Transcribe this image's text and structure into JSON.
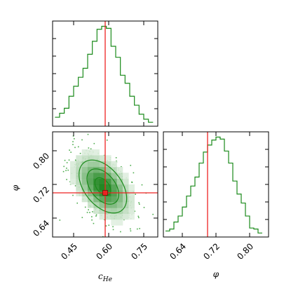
{
  "chart_data": {
    "type": "corner",
    "line_color": "#1a8a1a",
    "truth_color": "#ee2222",
    "parameters": [
      {
        "name": "c_He",
        "label_base": "c",
        "label_sub": "He",
        "range": [
          0.36,
          0.81
        ],
        "ticks": [
          0.45,
          0.6,
          0.75
        ],
        "truth": 0.585
      },
      {
        "name": "phi",
        "label_base": "φ",
        "label_sub": "",
        "range": [
          0.595,
          0.845
        ],
        "ticks": [
          0.64,
          0.72,
          0.8
        ],
        "truth": 0.7
      }
    ],
    "tick_labels": {
      "c_He": [
        "0.45",
        "0.60",
        "0.75"
      ],
      "phi": [
        "0.64",
        "0.72",
        "0.80"
      ]
    },
    "histograms": [
      {
        "parameter": "c_He",
        "bin_edges": [
          0.37,
          0.39,
          0.41,
          0.43,
          0.45,
          0.47,
          0.49,
          0.51,
          0.53,
          0.55,
          0.57,
          0.59,
          0.61,
          0.63,
          0.65,
          0.67,
          0.69,
          0.71,
          0.73,
          0.75,
          0.77,
          0.79
        ],
        "counts": [
          0.09,
          0.13,
          0.18,
          0.3,
          0.4,
          0.49,
          0.58,
          0.72,
          0.85,
          0.97,
          1.0,
          0.98,
          0.8,
          0.69,
          0.51,
          0.43,
          0.3,
          0.21,
          0.12,
          0.07,
          0.04
        ]
      },
      {
        "parameter": "phi",
        "bin_edges": [
          0.6,
          0.61,
          0.62,
          0.63,
          0.64,
          0.65,
          0.66,
          0.67,
          0.68,
          0.69,
          0.7,
          0.71,
          0.72,
          0.73,
          0.74,
          0.75,
          0.76,
          0.77,
          0.78,
          0.79,
          0.8,
          0.81,
          0.82,
          0.83
        ],
        "counts": [
          0.06,
          0.08,
          0.15,
          0.21,
          0.3,
          0.41,
          0.51,
          0.6,
          0.74,
          0.85,
          0.92,
          0.97,
          1.0,
          0.98,
          0.86,
          0.74,
          0.56,
          0.43,
          0.34,
          0.21,
          0.09,
          0.08,
          0.04
        ]
      }
    ],
    "joint": {
      "x": "c_He",
      "y": "phi",
      "mean": [
        0.575,
        0.715
      ],
      "std": [
        0.068,
        0.042
      ],
      "correlation": -0.45,
      "contour_levels_sigma": [
        0.5,
        1.0,
        1.5
      ],
      "density_colormap": [
        "#ffffff",
        "#0a7a0a"
      ]
    }
  }
}
